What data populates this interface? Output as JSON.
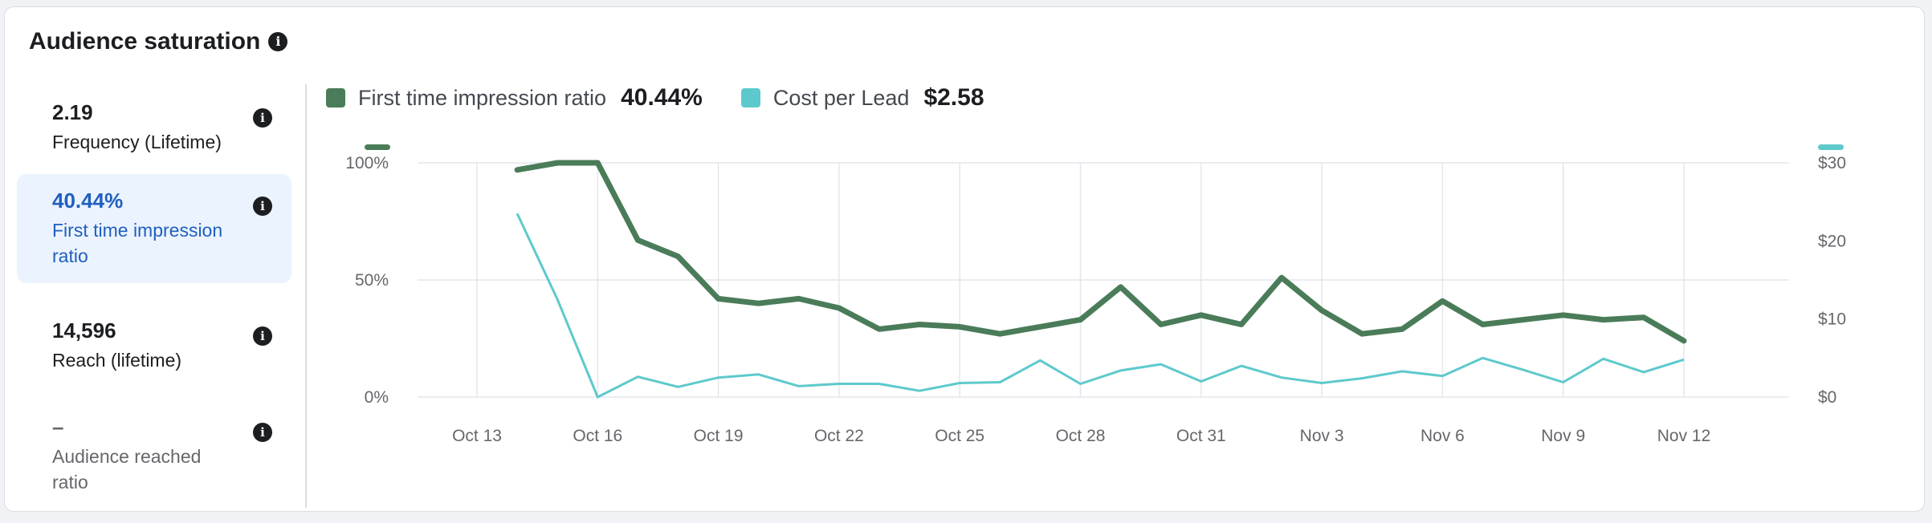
{
  "title": "Audience saturation",
  "metrics": [
    {
      "value": "2.19",
      "label": "Frequency (Lifetime)"
    },
    {
      "value": "40.44%",
      "label": "First time impression ratio"
    },
    {
      "value": "14,596",
      "label": "Reach (lifetime)"
    },
    {
      "value": "–",
      "label": "Audience reached ratio"
    }
  ],
  "legend": [
    {
      "name": "First time impression ratio",
      "value": "40.44%",
      "color": "#4a7c59"
    },
    {
      "name": "Cost per Lead",
      "value": "$2.58",
      "color": "#5ec9cc"
    }
  ],
  "chart_data": {
    "type": "line",
    "x_ticks": [
      "Oct 13",
      "Oct 16",
      "Oct 19",
      "Oct 22",
      "Oct 25",
      "Oct 28",
      "Oct 31",
      "Nov 3",
      "Nov 6",
      "Nov 9",
      "Nov 12"
    ],
    "y_left_ticks": [
      "100%",
      "50%",
      "0%"
    ],
    "y_right_ticks": [
      "$30",
      "$20",
      "$10",
      "$0"
    ],
    "ylim_left": [
      0,
      100
    ],
    "ylim_right": [
      0,
      30
    ],
    "grid": true,
    "series": [
      {
        "name": "First time impression ratio",
        "axis": "left",
        "color": "#4a7c59",
        "x": [
          "Oct 14",
          "Oct 15",
          "Oct 16",
          "Oct 17",
          "Oct 18",
          "Oct 19",
          "Oct 20",
          "Oct 21",
          "Oct 22",
          "Oct 23",
          "Oct 24",
          "Oct 25",
          "Oct 26",
          "Oct 27",
          "Oct 28",
          "Oct 29",
          "Oct 30",
          "Oct 31",
          "Nov 1",
          "Nov 2",
          "Nov 3",
          "Nov 4",
          "Nov 5",
          "Nov 6",
          "Nov 7",
          "Nov 8",
          "Nov 9",
          "Nov 10",
          "Nov 11",
          "Nov 12"
        ],
        "values": [
          97,
          100,
          100,
          67,
          60,
          42,
          40,
          42,
          38,
          29,
          31,
          30,
          27,
          30,
          33,
          47,
          31,
          35,
          31,
          51,
          37,
          27,
          29,
          41,
          31,
          33,
          35,
          33,
          34,
          24
        ]
      },
      {
        "name": "Cost per Lead",
        "axis": "right",
        "color": "#5ec9cc",
        "x": [
          "Oct 14",
          "Oct 15",
          "Oct 16",
          "Oct 17",
          "Oct 18",
          "Oct 19",
          "Oct 20",
          "Oct 21",
          "Oct 22",
          "Oct 23",
          "Oct 24",
          "Oct 25",
          "Oct 26",
          "Oct 27",
          "Oct 28",
          "Oct 29",
          "Oct 30",
          "Oct 31",
          "Nov 1",
          "Nov 2",
          "Nov 3",
          "Nov 4",
          "Nov 5",
          "Nov 6",
          "Nov 7",
          "Nov 8",
          "Nov 9",
          "Nov 10",
          "Nov 11",
          "Nov 12"
        ],
        "values": [
          23.5,
          12.5,
          0,
          2.6,
          1.3,
          2.5,
          2.9,
          1.4,
          1.7,
          1.7,
          0.8,
          1.8,
          1.9,
          4.7,
          1.7,
          3.4,
          4.2,
          2.0,
          4.0,
          2.5,
          1.8,
          2.4,
          3.3,
          2.7,
          5.0,
          3.5,
          1.9,
          4.9,
          3.2,
          4.8
        ]
      }
    ]
  }
}
